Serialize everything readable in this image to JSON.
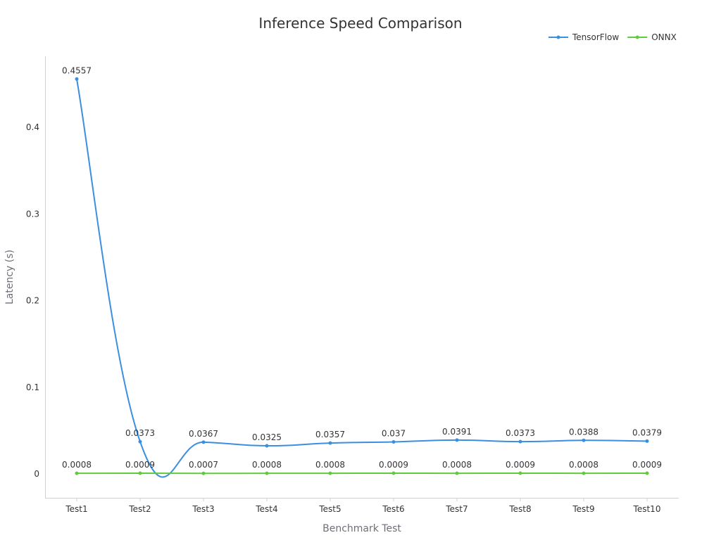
{
  "chart_data": {
    "type": "line",
    "title": "Inference Speed Comparison",
    "xlabel": "Benchmark Test",
    "ylabel": "Latency (s)",
    "categories": [
      "Test1",
      "Test2",
      "Test3",
      "Test4",
      "Test5",
      "Test6",
      "Test7",
      "Test8",
      "Test9",
      "Test10"
    ],
    "ylim": [
      -0.0275,
      0.482
    ],
    "yticks": [
      0,
      0.1,
      0.2,
      0.3,
      0.4
    ],
    "grid": false,
    "legend_position": "top-right",
    "smooth": true,
    "series": [
      {
        "name": "TensorFlow",
        "color": "#3b8fe0",
        "values": [
          0.4557,
          0.0373,
          0.0367,
          0.0325,
          0.0357,
          0.037,
          0.0391,
          0.0373,
          0.0388,
          0.0379
        ],
        "labels": [
          "0.4557",
          "0.0373",
          "0.0367",
          "0.0325",
          "0.0357",
          "0.037",
          "0.0391",
          "0.0373",
          "0.0388",
          "0.0379"
        ]
      },
      {
        "name": "ONNX",
        "color": "#5fcc3b",
        "values": [
          0.0008,
          0.0009,
          0.0007,
          0.0008,
          0.0008,
          0.0009,
          0.0008,
          0.0009,
          0.0008,
          0.0009
        ],
        "labels": [
          "0.0008",
          "0.0009",
          "0.0007",
          "0.0008",
          "0.0008",
          "0.0009",
          "0.0008",
          "0.0009",
          "0.0008",
          "0.0009"
        ]
      }
    ]
  }
}
